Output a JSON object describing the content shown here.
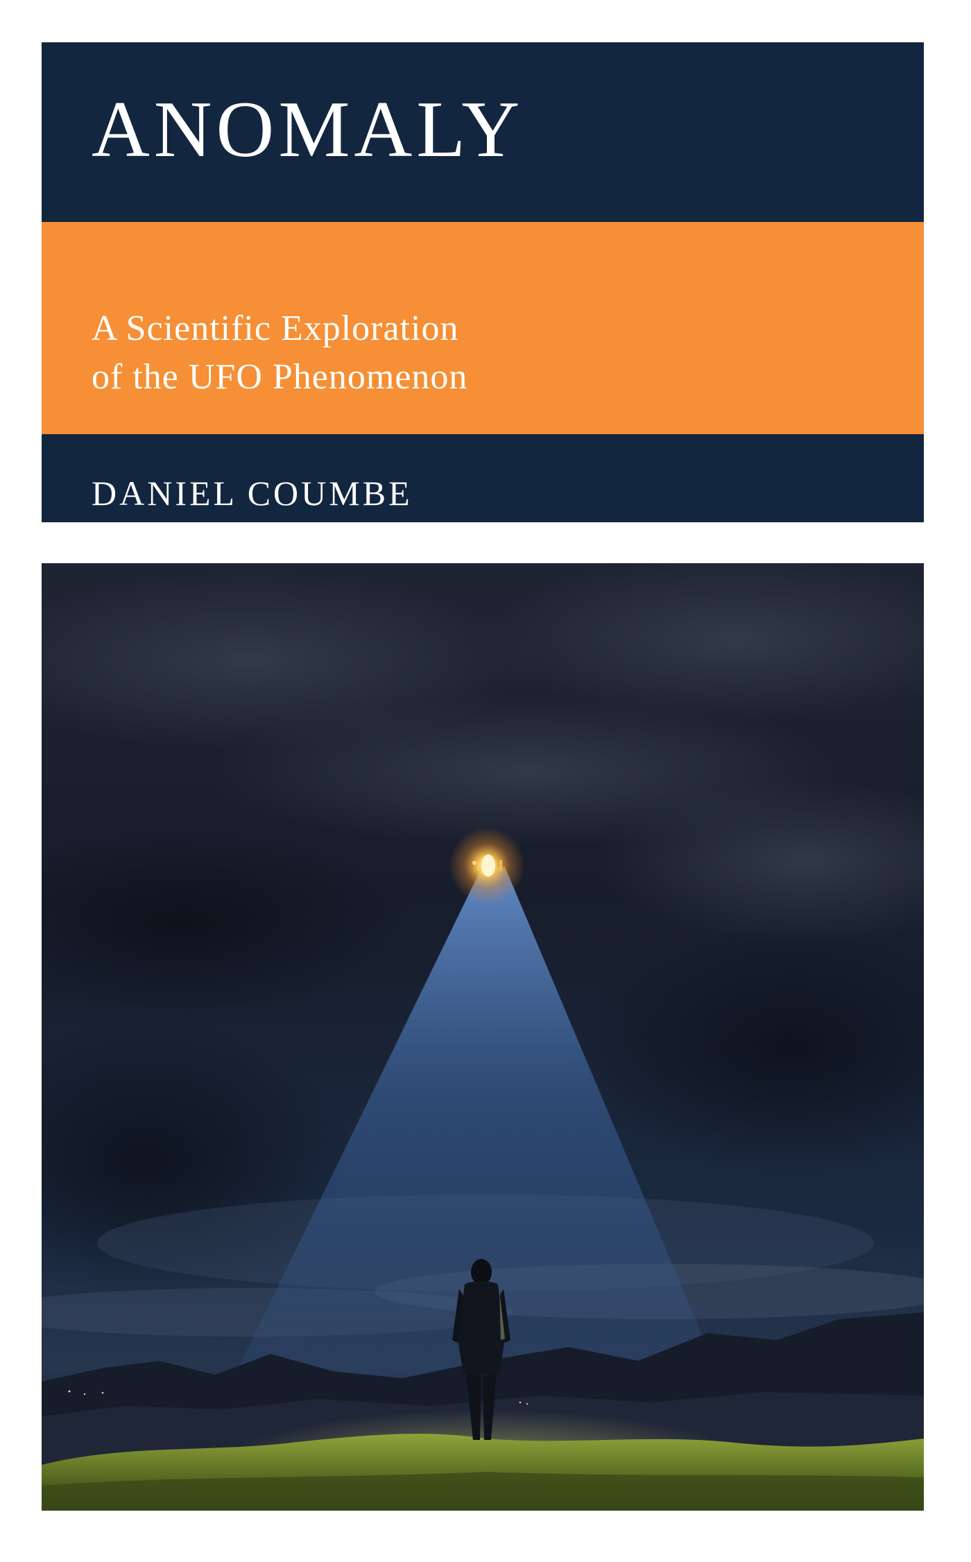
{
  "cover": {
    "title": "ANOMALY",
    "subtitle_line1": "A Scientific Exploration",
    "subtitle_line2": "of the UFO Phenomenon",
    "author": "DANIEL COUMBE"
  },
  "colors": {
    "navy": "#12263f",
    "orange": "#f68f35",
    "text": "#ffffff"
  },
  "artwork": {
    "scene": "night-sky-ufo-light-beam-figure"
  }
}
